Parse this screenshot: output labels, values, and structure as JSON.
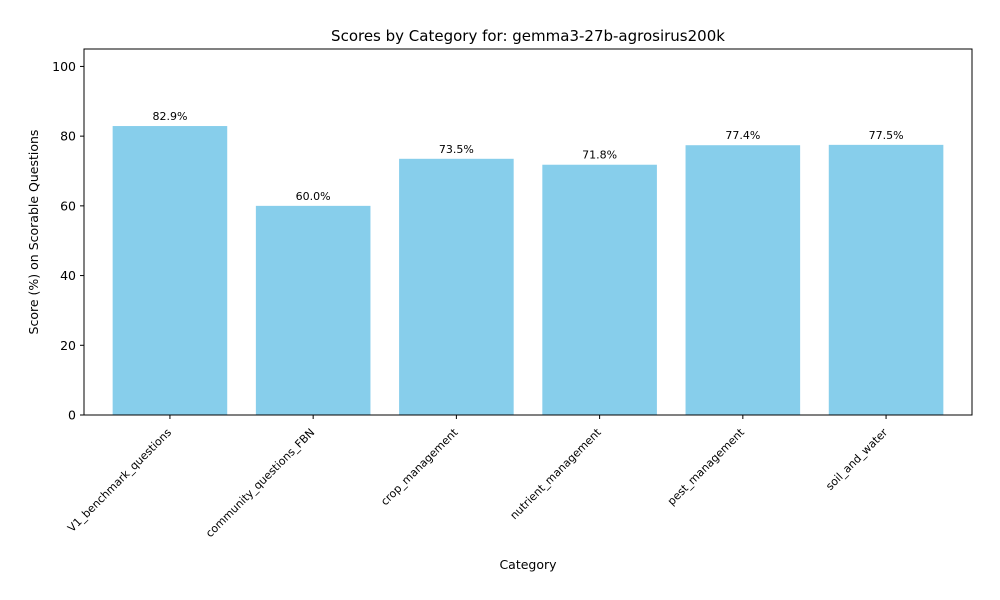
{
  "chart_data": {
    "type": "bar",
    "title": "Scores by Category for: gemma3-27b-agrosirus200k",
    "xlabel": "Category",
    "ylabel": "Score (%) on Scorable Questions",
    "categories": [
      "V1_benchmark_questions",
      "community_questions_FBN",
      "crop_management",
      "nutrient_management",
      "pest_management",
      "soil_and_water"
    ],
    "values": [
      82.9,
      60.0,
      73.5,
      71.8,
      77.4,
      77.5
    ],
    "data_labels": [
      "82.9%",
      "60.0%",
      "73.5%",
      "71.8%",
      "77.4%",
      "77.5%"
    ],
    "ylim": [
      0,
      105
    ],
    "yticks": [
      0,
      20,
      40,
      60,
      80,
      100
    ],
    "bar_color": "#87ceeb",
    "grid": false,
    "legend": "none"
  }
}
